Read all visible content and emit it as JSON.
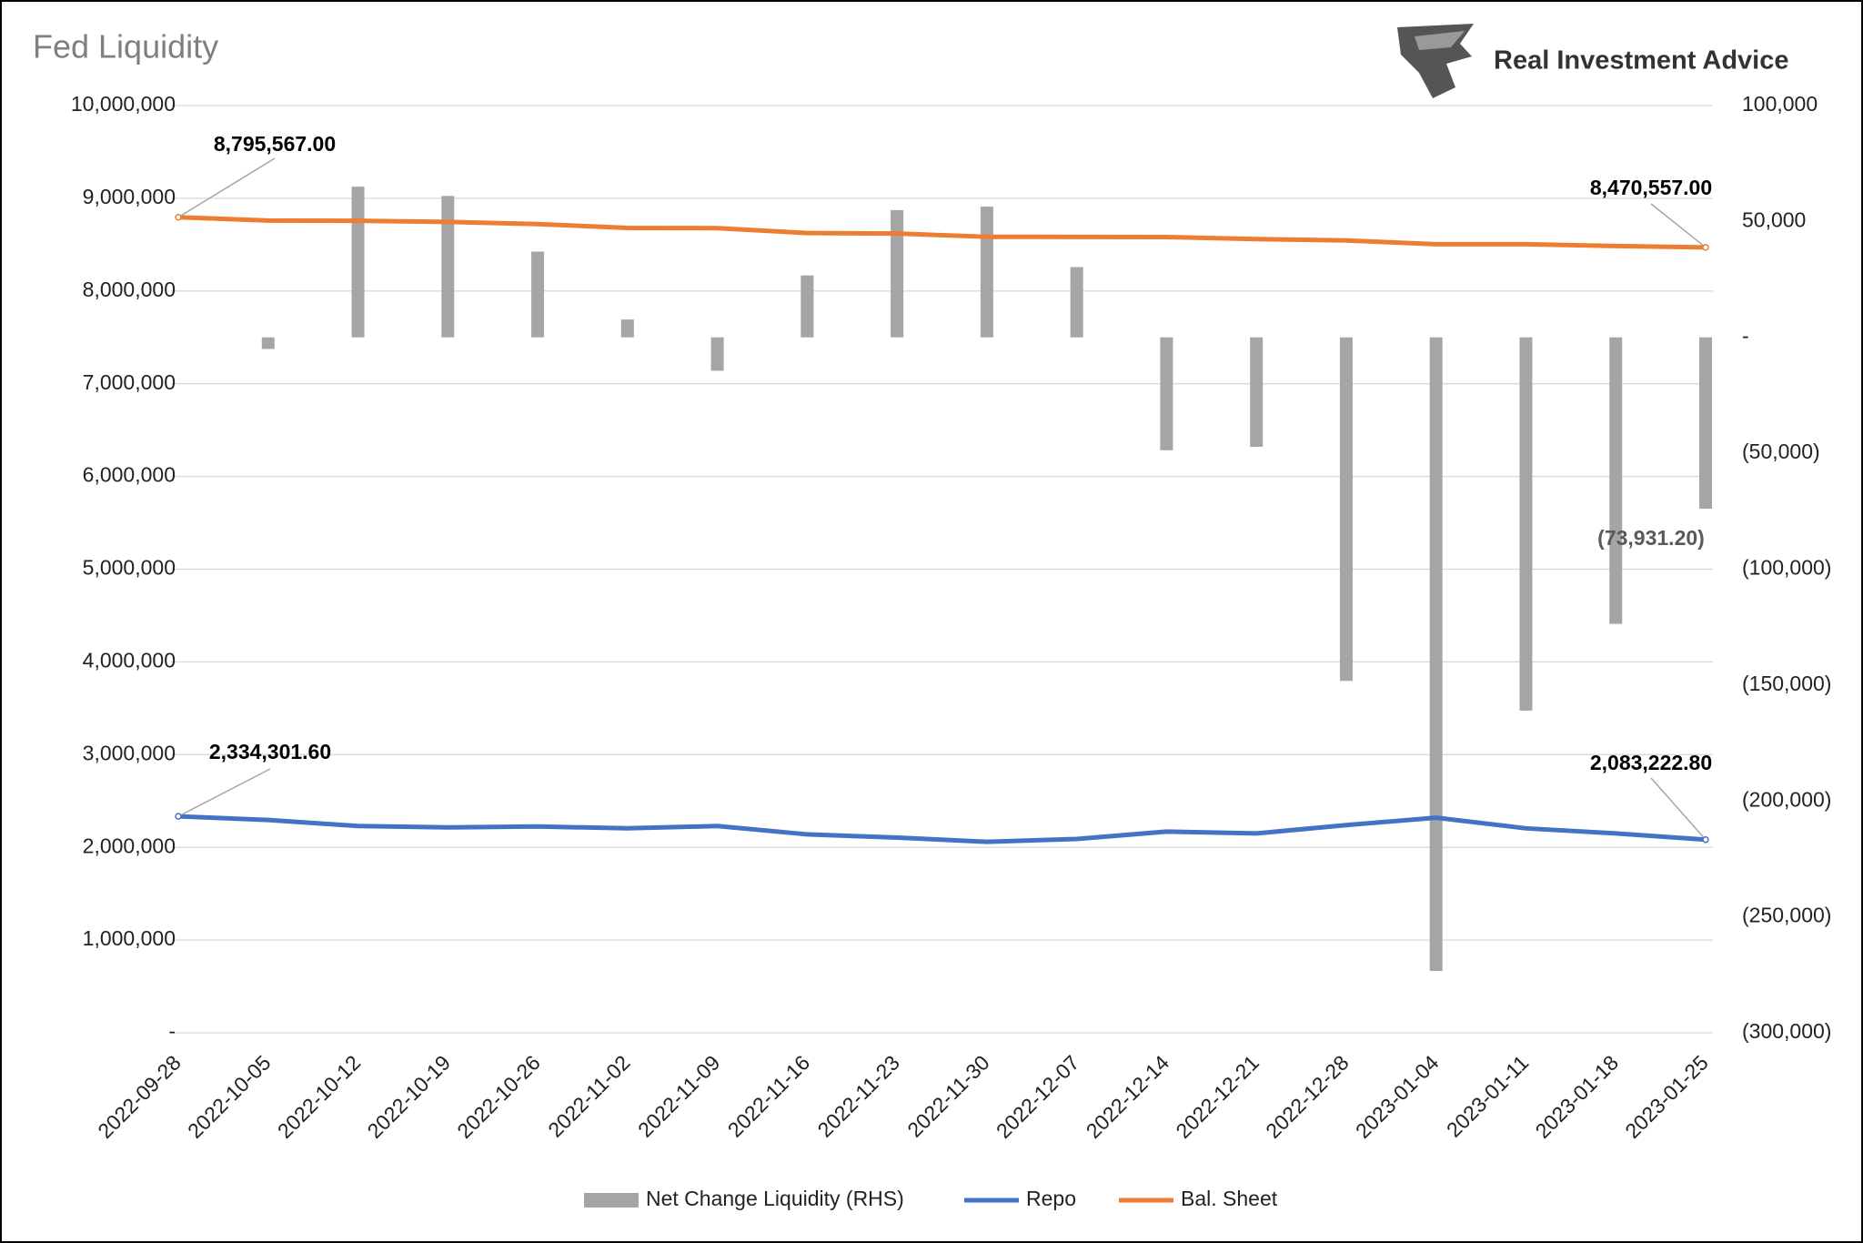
{
  "chart_data": {
    "type": "combo",
    "title": "Fed Liquidity",
    "brand": "Real Investment Advice",
    "categories": [
      "2022-09-28",
      "2022-10-05",
      "2022-10-12",
      "2022-10-19",
      "2022-10-26",
      "2022-11-02",
      "2022-11-09",
      "2022-11-16",
      "2022-11-23",
      "2022-11-30",
      "2022-12-07",
      "2022-12-14",
      "2022-12-21",
      "2022-12-28",
      "2023-01-04",
      "2023-01-11",
      "2023-01-18",
      "2023-01-25"
    ],
    "series": [
      {
        "name": "Net Change Liquidity (RHS)",
        "type": "bar",
        "axis": "y2",
        "color": "#a5a5a5",
        "values": [
          null,
          -5000,
          65000,
          61000,
          37000,
          7700,
          -14400,
          26700,
          54900,
          56400,
          30300,
          -48700,
          -47200,
          -148200,
          -273300,
          -161000,
          -123600,
          -73931.2
        ],
        "value_labels": [
          null,
          null,
          null,
          null,
          null,
          null,
          null,
          null,
          null,
          null,
          null,
          null,
          null,
          null,
          null,
          null,
          null,
          "(73,931.20)"
        ]
      },
      {
        "name": "Repo",
        "type": "line",
        "color": "#4472c4",
        "values": [
          2334301.6,
          2295000,
          2230000,
          2215000,
          2225000,
          2205000,
          2230000,
          2140000,
          2105000,
          2060000,
          2090000,
          2170000,
          2150000,
          2240000,
          2320000,
          2205000,
          2150000,
          2083222.8
        ],
        "value_labels": [
          "2,334,301.60",
          null,
          null,
          null,
          null,
          null,
          null,
          null,
          null,
          null,
          null,
          null,
          null,
          null,
          null,
          null,
          null,
          "2,083,222.80"
        ]
      },
      {
        "name": "Bal. Sheet",
        "type": "line",
        "color": "#ed7d31",
        "values": [
          8795567,
          8760000,
          8757000,
          8745000,
          8722000,
          8680000,
          8678000,
          8625000,
          8620000,
          8585000,
          8583000,
          8582000,
          8560000,
          8545000,
          8505000,
          8505000,
          8485000,
          8470557
        ],
        "value_labels": [
          "8,795,567.00",
          null,
          null,
          null,
          null,
          null,
          null,
          null,
          null,
          null,
          null,
          null,
          null,
          null,
          null,
          null,
          null,
          "8,470,557.00"
        ]
      }
    ],
    "ylim": [
      0,
      10000000
    ],
    "yticks": [
      {
        "value": 0,
        "label": "-"
      },
      {
        "value": 1000000,
        "label": "1,000,000"
      },
      {
        "value": 2000000,
        "label": "2,000,000"
      },
      {
        "value": 3000000,
        "label": "3,000,000"
      },
      {
        "value": 4000000,
        "label": "4,000,000"
      },
      {
        "value": 5000000,
        "label": "5,000,000"
      },
      {
        "value": 6000000,
        "label": "6,000,000"
      },
      {
        "value": 7000000,
        "label": "7,000,000"
      },
      {
        "value": 8000000,
        "label": "8,000,000"
      },
      {
        "value": 9000000,
        "label": "9,000,000"
      },
      {
        "value": 10000000,
        "label": "10,000,000"
      }
    ],
    "y2lim": [
      -300000,
      100000
    ],
    "y2ticks": [
      {
        "value": -300000,
        "label": "(300,000)"
      },
      {
        "value": -250000,
        "label": "(250,000)"
      },
      {
        "value": -200000,
        "label": "(200,000)"
      },
      {
        "value": -150000,
        "label": "(150,000)"
      },
      {
        "value": -100000,
        "label": "(100,000)"
      },
      {
        "value": -50000,
        "label": "(50,000)"
      },
      {
        "value": 0,
        "label": "-"
      },
      {
        "value": 50000,
        "label": "50,000"
      },
      {
        "value": 100000,
        "label": "100,000"
      }
    ],
    "grid": true,
    "legend": "bottom"
  }
}
